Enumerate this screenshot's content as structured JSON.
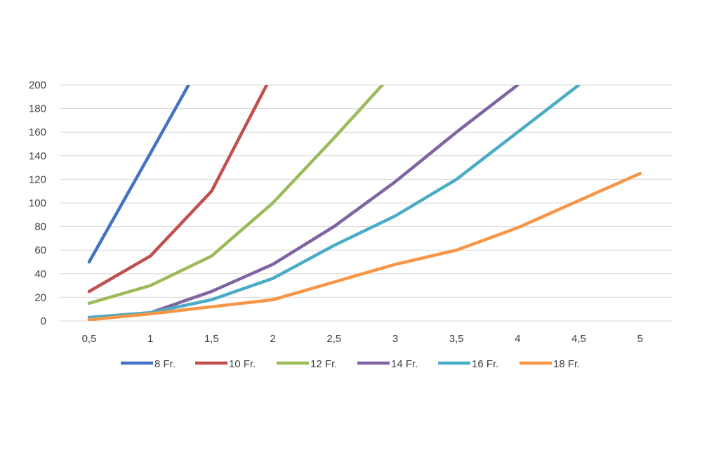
{
  "chart_data": {
    "type": "line",
    "title": "",
    "xlabel": "",
    "ylabel": "",
    "categories": [
      "0,5",
      "1",
      "1,5",
      "2",
      "2,5",
      "3",
      "3,5",
      "4",
      "4,5",
      "5"
    ],
    "ylim": [
      0,
      200
    ],
    "yticks": [
      0,
      20,
      40,
      60,
      80,
      100,
      120,
      140,
      160,
      180,
      200
    ],
    "ytick_labels": [
      "0",
      "20",
      "40",
      "60",
      "80",
      "100",
      "120",
      "140",
      "160",
      "180",
      "200"
    ],
    "grid": "horizontal",
    "legend_position": "bottom",
    "series": [
      {
        "name": "8 Fr.",
        "color": "#4472c4",
        "values": [
          50,
          142,
          235,
          null,
          null,
          null,
          null,
          null,
          null,
          null
        ]
      },
      {
        "name": "10 Fr.",
        "color": "#c0504d",
        "values": [
          25,
          55,
          110,
          210,
          null,
          null,
          null,
          null,
          null,
          null
        ]
      },
      {
        "name": "12 Fr.",
        "color": "#9bbb59",
        "values": [
          15,
          30,
          55,
          100,
          155,
          212,
          null,
          null,
          null,
          null
        ]
      },
      {
        "name": "14 Fr.",
        "color": "#8064a2",
        "values": [
          3,
          7,
          25,
          48,
          80,
          118,
          160,
          200,
          null,
          null
        ]
      },
      {
        "name": "16 Fr.",
        "color": "#4bacc6",
        "values": [
          3,
          7,
          18,
          36,
          64,
          89,
          120,
          160,
          200,
          null
        ]
      },
      {
        "name": "18 Fr.",
        "color": "#f79646",
        "values": [
          1,
          6,
          12,
          18,
          33,
          48,
          60,
          79,
          102,
          125
        ]
      }
    ]
  }
}
